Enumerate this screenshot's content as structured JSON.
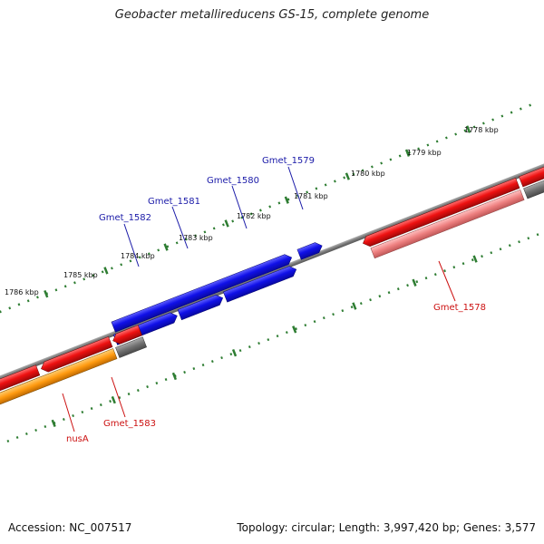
{
  "title": "Geobacter metallireducens GS-15, complete genome",
  "footer": {
    "accession": "Accession: NC_007517",
    "summary": "Topology: circular; Length: 3,997,420 bp; Genes: 3,577"
  },
  "colors": {
    "backbone": "#808080",
    "tick": "#2e7d32",
    "gene_blue": "#1010e8",
    "gene_red": "#ee1111",
    "gene_pink": "#ee8080",
    "gene_gray": "#707070",
    "gene_orange": "#ff9a10",
    "label_blue": "#1a1aa8",
    "label_red": "#cc1111"
  },
  "ticks": {
    "outer": [
      "1778 kbp",
      "1779 kbp",
      "1780 kbp",
      "1781 kbp",
      "1782 kbp",
      "1783 kbp",
      "1784 kbp",
      "1785 kbp",
      "1786 kbp"
    ]
  },
  "genes": {
    "Gmet_1578": "Gmet_1578",
    "Gmet_1579": "Gmet_1579",
    "Gmet_1580": "Gmet_1580",
    "Gmet_1581": "Gmet_1581",
    "Gmet_1582": "Gmet_1582",
    "Gmet_1583": "Gmet_1583",
    "nusA": "nusA"
  }
}
